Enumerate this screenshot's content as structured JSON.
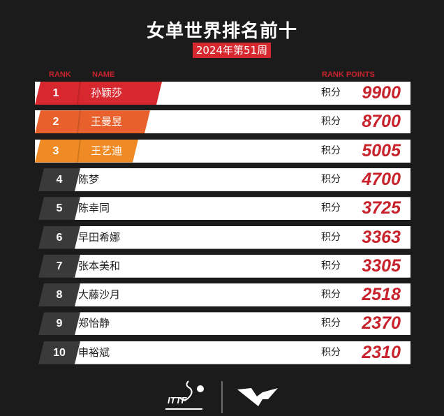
{
  "title": "女单世界排名前十",
  "week": "2024年第51周",
  "headers": {
    "rank": "RANK",
    "name": "NAME",
    "points": "RANK POINTS"
  },
  "points_label": "积分",
  "colors": {
    "rank1": "#d7282f",
    "rank2": "#e8612c",
    "rank3": "#ef8a25",
    "other": "#3a3a3a",
    "accent": "#c8232c"
  },
  "rows": [
    {
      "rank": "1",
      "name": "孙颖莎",
      "points": "9900"
    },
    {
      "rank": "2",
      "name": "王曼昱",
      "points": "8700"
    },
    {
      "rank": "3",
      "name": "王艺迪",
      "points": "5005"
    },
    {
      "rank": "4",
      "name": "陈梦",
      "points": "4700"
    },
    {
      "rank": "5",
      "name": "陈幸同",
      "points": "3725"
    },
    {
      "rank": "6",
      "name": "早田希娜",
      "points": "3363"
    },
    {
      "rank": "7",
      "name": "张本美和",
      "points": "3305"
    },
    {
      "rank": "8",
      "name": "大藤沙月",
      "points": "2518"
    },
    {
      "rank": "9",
      "name": "郑怡静",
      "points": "2370"
    },
    {
      "rank": "10",
      "name": "申裕斌",
      "points": "2310"
    }
  ],
  "logos": {
    "left": "ITTF",
    "right": "WTT"
  }
}
